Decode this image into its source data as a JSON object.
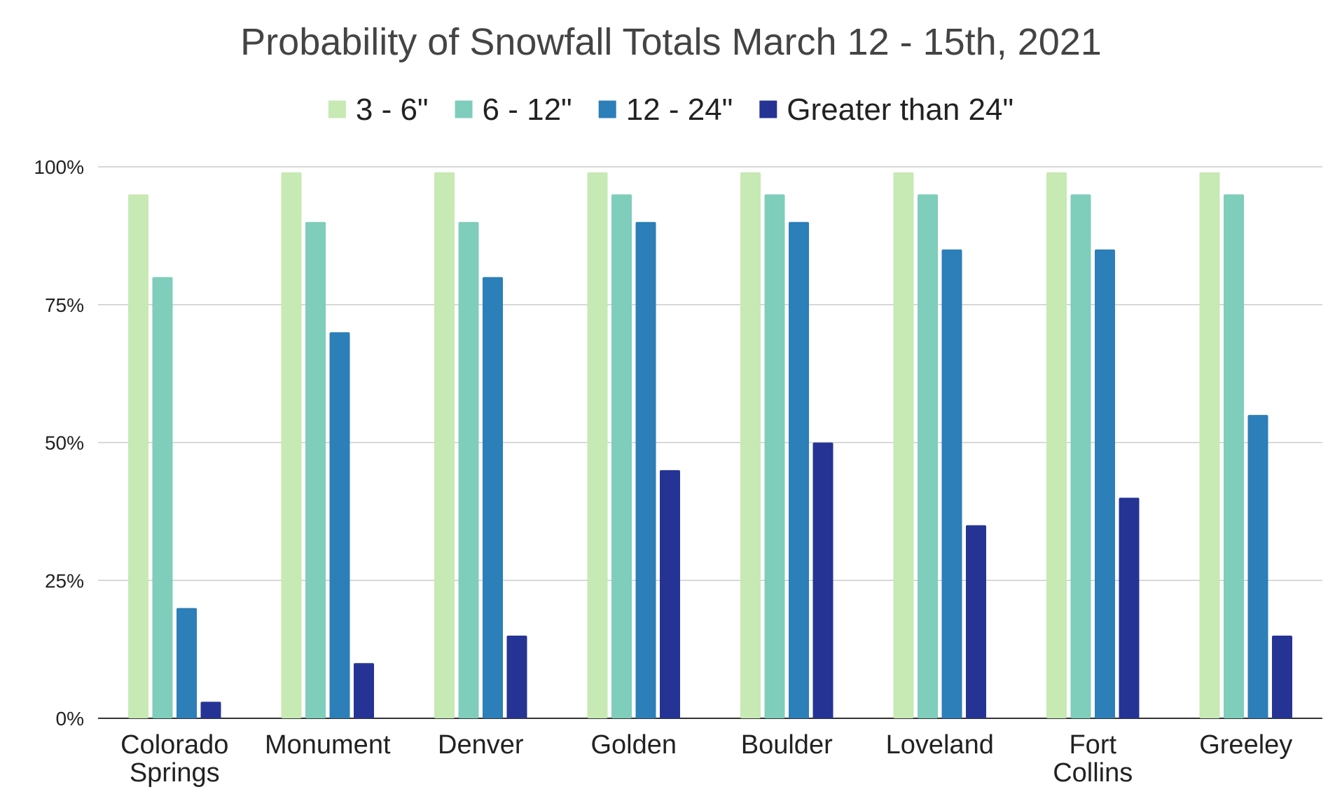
{
  "chart_data": {
    "type": "bar",
    "title": "Probability of Snowfall Totals March 12 - 15th, 2021",
    "xlabel": "",
    "ylabel": "",
    "ylim": [
      0,
      100
    ],
    "y_ticks": [
      0,
      25,
      50,
      75,
      100
    ],
    "y_tick_labels": [
      "0%",
      "25%",
      "50%",
      "75%",
      "100%"
    ],
    "grid": true,
    "legend_position": "top",
    "categories": [
      [
        "Colorado",
        "Springs"
      ],
      [
        "Monument"
      ],
      [
        "Denver"
      ],
      [
        "Golden"
      ],
      [
        "Boulder"
      ],
      [
        "Loveland"
      ],
      [
        "Fort",
        "Collins"
      ],
      [
        "Greeley"
      ]
    ],
    "series": [
      {
        "name": "3 - 6\"",
        "color": "#c7e9b4",
        "values": [
          95,
          99,
          99,
          99,
          99,
          99,
          99,
          99
        ]
      },
      {
        "name": "6 - 12\"",
        "color": "#7fcdbb",
        "values": [
          80,
          90,
          90,
          95,
          95,
          95,
          95,
          95
        ]
      },
      {
        "name": "12 - 24\"",
        "color": "#2c7fb8",
        "values": [
          20,
          70,
          80,
          90,
          90,
          85,
          85,
          55
        ]
      },
      {
        "name": "Greater than 24\"",
        "color": "#253494",
        "values": [
          3,
          10,
          15,
          45,
          50,
          35,
          40,
          15
        ]
      }
    ]
  }
}
